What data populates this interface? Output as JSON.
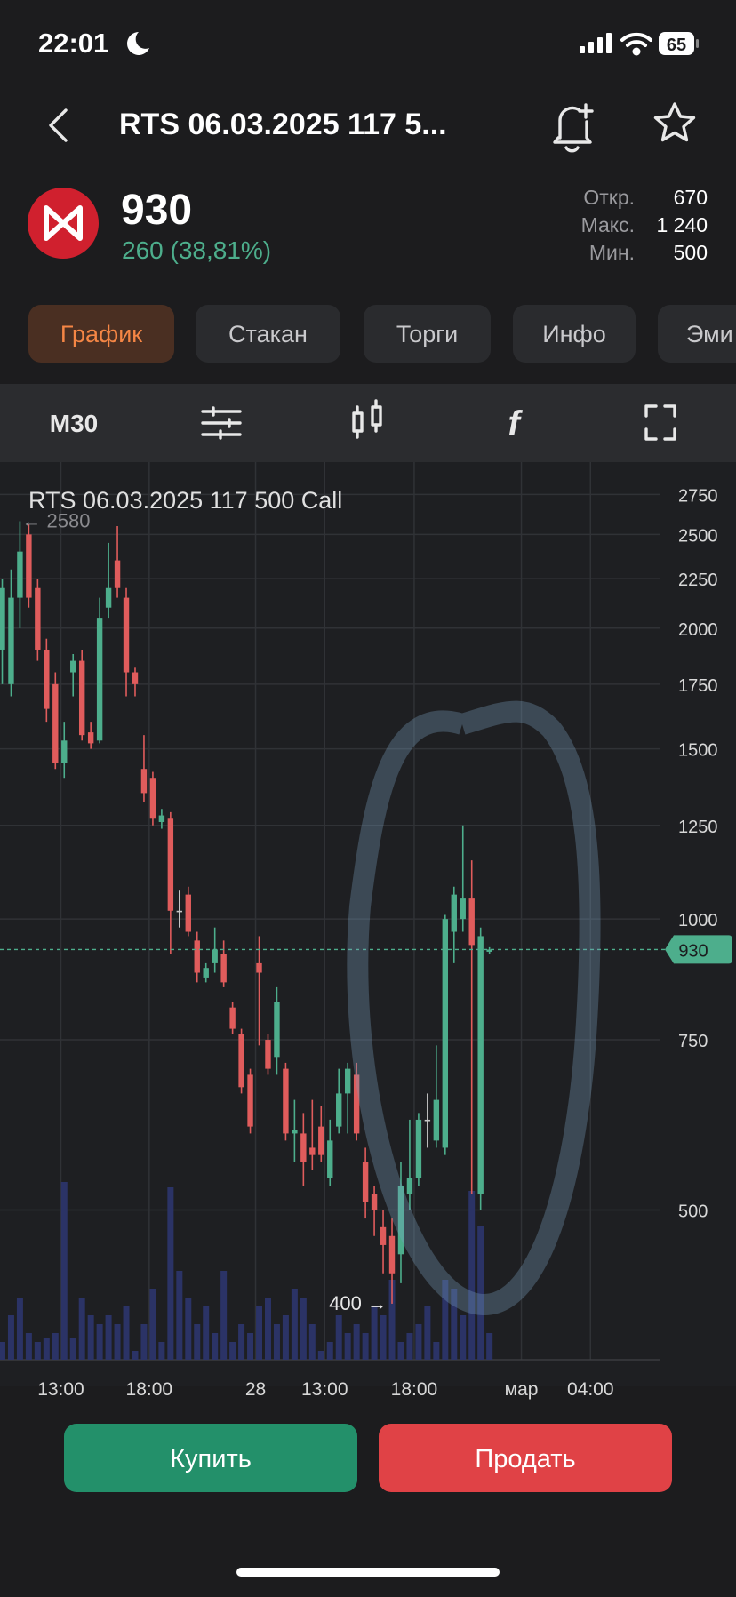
{
  "status_bar": {
    "time": "22:01",
    "battery": "65"
  },
  "header": {
    "title": "RTS 06.03.2025 117 5..."
  },
  "quote": {
    "price": "930",
    "change": "260 (38,81%)",
    "stats": [
      {
        "label": "Откр.",
        "value": "670"
      },
      {
        "label": "Макс.",
        "value": "1 240"
      },
      {
        "label": "Мин.",
        "value": "500"
      }
    ]
  },
  "tabs": [
    "График",
    "Стакан",
    "Торги",
    "Инфо",
    "Эми"
  ],
  "toolbar": {
    "interval": "M30"
  },
  "chart_data": {
    "type": "candlestick",
    "title": "RTS 06.03.2025 117 500 Call",
    "open": [
      1900,
      1750,
      2150,
      2500,
      2200,
      1900,
      1750,
      1450,
      1800,
      1850,
      1560,
      1530,
      2100,
      2350,
      2150,
      1800,
      1430,
      1400,
      1260,
      1270,
      1020,
      1060,
      950,
      870,
      900,
      920,
      810,
      760,
      690,
      900,
      750,
      720,
      700,
      600,
      600,
      580,
      610,
      540,
      610,
      660,
      690,
      560,
      520,
      480,
      470,
      450,
      520,
      540,
      620,
      590,
      580,
      970,
      1000,
      1050,
      520,
      925
    ],
    "high": [
      2250,
      2300,
      2580,
      2560,
      2250,
      1950,
      1800,
      1600,
      1880,
      1900,
      1600,
      2150,
      2450,
      2550,
      2200,
      1820,
      1550,
      1420,
      1300,
      1290,
      1070,
      1080,
      970,
      900,
      980,
      950,
      820,
      770,
      700,
      960,
      760,
      850,
      710,
      650,
      630,
      650,
      640,
      620,
      700,
      710,
      710,
      580,
      530,
      500,
      490,
      560,
      620,
      630,
      660,
      740,
      1010,
      1080,
      1250,
      1150,
      980,
      935
    ],
    "low": [
      1750,
      1700,
      2000,
      2100,
      1850,
      1600,
      1430,
      1400,
      1700,
      1530,
      1500,
      1520,
      2050,
      2150,
      1700,
      1700,
      1320,
      1250,
      1240,
      920,
      980,
      960,
      860,
      860,
      880,
      850,
      760,
      660,
      600,
      740,
      690,
      690,
      590,
      560,
      530,
      550,
      560,
      530,
      600,
      600,
      590,
      490,
      470,
      430,
      400,
      420,
      500,
      530,
      580,
      580,
      570,
      900,
      970,
      520,
      500,
      920
    ],
    "close": [
      2200,
      2150,
      2400,
      2150,
      1900,
      1650,
      1450,
      1530,
      1850,
      1550,
      1520,
      2050,
      2200,
      2200,
      1800,
      1750,
      1350,
      1270,
      1280,
      1020,
      1020,
      970,
      880,
      890,
      930,
      860,
      770,
      670,
      610,
      880,
      700,
      820,
      600,
      605,
      560,
      570,
      570,
      590,
      660,
      700,
      600,
      510,
      500,
      460,
      430,
      530,
      540,
      620,
      620,
      650,
      1000,
      1060,
      1050,
      940,
      960,
      930
    ],
    "volume": [
      10,
      25,
      35,
      15,
      10,
      12,
      15,
      100,
      12,
      35,
      25,
      20,
      25,
      20,
      30,
      5,
      20,
      40,
      10,
      97,
      50,
      35,
      20,
      30,
      15,
      50,
      10,
      20,
      15,
      30,
      35,
      20,
      25,
      40,
      35,
      20,
      5,
      10,
      25,
      15,
      20,
      15,
      30,
      25,
      45,
      10,
      15,
      20,
      30,
      10,
      45,
      40,
      25,
      95,
      75,
      15
    ],
    "up_color": "#4dae8c",
    "down_color": "#e05c5c",
    "doji_color": "#c8c8c8",
    "volume_color": "#2b3366",
    "log_scale": true,
    "grid": true,
    "ylim": [
      350,
      2970
    ],
    "yticks": [
      500,
      750,
      1000,
      1250,
      1500,
      1750,
      2000,
      2250,
      2500,
      2750
    ],
    "xlim": [
      -0.25,
      74.2
    ],
    "xticks": [
      {
        "value": 6.62,
        "label": "13:00"
      },
      {
        "value": 16.59,
        "label": "18:00"
      },
      {
        "value": 28.6,
        "label": "28"
      },
      {
        "value": 36.4,
        "label": "13:00"
      },
      {
        "value": 46.5,
        "label": "18:00"
      },
      {
        "value": 58.6,
        "label": "мар"
      },
      {
        "value": 66.4,
        "label": "04:00"
      }
    ],
    "last_price": 930,
    "annotations": [
      {
        "text": "← 2580",
        "index": 2,
        "value": 2580
      },
      {
        "text": "400 →",
        "index": 44,
        "value": 400
      }
    ]
  },
  "buttons": {
    "buy": "Купить",
    "sell": "Продать"
  }
}
